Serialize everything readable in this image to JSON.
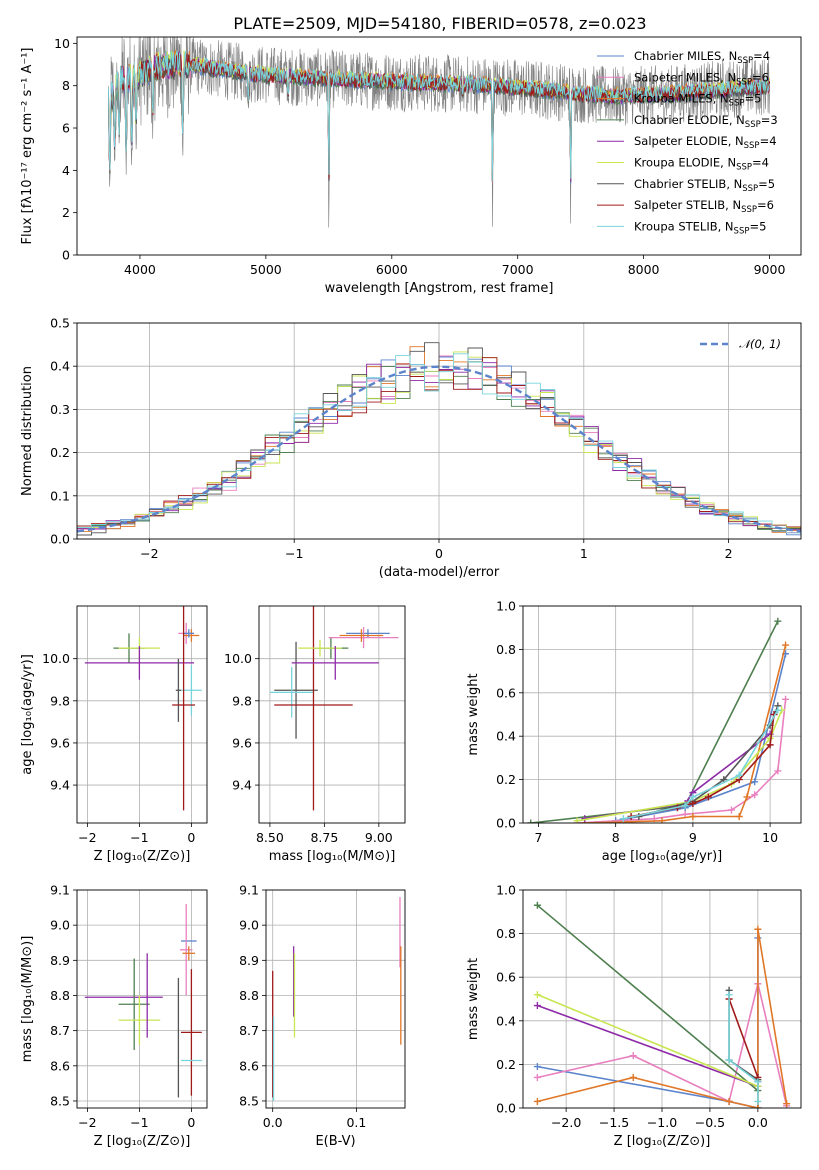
{
  "title": "PLATE=2509, MJD=54180, FIBERID=0578, z=0.023",
  "colors": {
    "chabrier_miles": "#5b84cc",
    "salpeter_miles": "#e87fbf",
    "kroupa_miles": "#e07727",
    "chabrier_elodie": "#4f7f4f",
    "salpeter_elodie": "#8e2aa8",
    "kroupa_elodie": "#c7e650",
    "chabrier_stelib": "#555555",
    "salpeter_stelib": "#a01a1a",
    "kroupa_stelib": "#78d4db",
    "data": "#808080",
    "normal_curve": "#5b84cc"
  },
  "legend": [
    {
      "key": "chabrier_miles",
      "pre": "Chabrier MILES, N",
      "sub": "SSP",
      "post": "=4"
    },
    {
      "key": "salpeter_miles",
      "pre": "Salpeter MILES, N",
      "sub": "SSP",
      "post": "=6"
    },
    {
      "key": "kroupa_miles",
      "pre": "Kroupa MILES, N",
      "sub": "SSP",
      "post": "=5"
    },
    {
      "key": "chabrier_elodie",
      "pre": "Chabrier ELODIE, N",
      "sub": "SSP",
      "post": "=3"
    },
    {
      "key": "salpeter_elodie",
      "pre": "Salpeter ELODIE, N",
      "sub": "SSP",
      "post": "=4"
    },
    {
      "key": "kroupa_elodie",
      "pre": "Kroupa ELODIE, N",
      "sub": "SSP",
      "post": "=4"
    },
    {
      "key": "chabrier_stelib",
      "pre": "Chabrier STELIB, N",
      "sub": "SSP",
      "post": "=5"
    },
    {
      "key": "salpeter_stelib",
      "pre": "Salpeter STELIB, N",
      "sub": "SSP",
      "post": "=6"
    },
    {
      "key": "kroupa_stelib",
      "pre": "Kroupa STELIB, N",
      "sub": "SSP",
      "post": "=5"
    }
  ],
  "chart_data": [
    {
      "id": "spectrum",
      "type": "line",
      "xlabel": "wavelength [Angstrom, rest frame]",
      "ylabel": "Flux [fλ10⁻¹⁷ erg cm⁻² s⁻¹ A⁻¹]",
      "xlim": [
        3500,
        9250
      ],
      "ylim": [
        0,
        10.3
      ],
      "xticks": [
        "4000",
        "5000",
        "6000",
        "7000",
        "8000",
        "9000"
      ],
      "yticks": [
        "0",
        "2",
        "4",
        "6",
        "8",
        "10"
      ],
      "continuum_x": [
        3750,
        3850,
        3950,
        4050,
        4150,
        4300,
        4500,
        4700,
        5000,
        5300,
        5600,
        6000,
        6400,
        6800,
        7200,
        7500,
        7800,
        8200,
        8600,
        9000
      ],
      "continuum_y": [
        7.2,
        8.3,
        8.4,
        8.7,
        8.9,
        9.0,
        8.9,
        8.7,
        8.5,
        8.4,
        8.3,
        8.2,
        8.1,
        8.0,
        7.8,
        7.6,
        7.5,
        7.6,
        7.8,
        8.0
      ],
      "dips": [
        [
          3760,
          2.5
        ],
        [
          3800,
          4.0
        ],
        [
          3835,
          5.0
        ],
        [
          3890,
          3.5
        ],
        [
          3934,
          4.0
        ],
        [
          3969,
          5.0
        ],
        [
          4101,
          5.5
        ],
        [
          4340,
          4.3
        ],
        [
          4861,
          6.8
        ],
        [
          5176,
          7.2
        ],
        [
          5500,
          0.0
        ],
        [
          6563,
          7.3
        ],
        [
          6800,
          0.0
        ],
        [
          7420,
          0.4
        ]
      ],
      "grid": false,
      "legend_position": "upper right"
    },
    {
      "id": "residuals",
      "type": "histogram",
      "xlabel": "(data-model)/error",
      "ylabel": "Normed distribution",
      "xlim": [
        -2.5,
        2.5
      ],
      "ylim": [
        0,
        0.5
      ],
      "xticks": [
        "−2",
        "−1",
        "0",
        "1",
        "2"
      ],
      "yticks": [
        "0.0",
        "0.1",
        "0.2",
        "0.3",
        "0.4",
        "0.5"
      ],
      "bin_width": 0.1,
      "curve_label": "𝒩(0, 1)",
      "grid": true,
      "legend_position": "upper right"
    },
    {
      "id": "age_vs_Z",
      "type": "errorbar",
      "xlabel": "Z [log₁₀(Z/Z⊙)]",
      "ylabel": "age  [log₁₀(age/yr)]",
      "xlim": [
        -2.2,
        0.3
      ],
      "ylim": [
        9.22,
        10.25
      ],
      "xticks": [
        "−2",
        "−1",
        "0"
      ],
      "yticks": [
        "9.4",
        "9.6",
        "9.8",
        "10.0"
      ],
      "points": [
        {
          "key": "chabrier_elodie",
          "x": -1.2,
          "xerr": 0.3,
          "y": 10.05,
          "yerr": 0.07
        },
        {
          "key": "kroupa_elodie",
          "x": -1.0,
          "xerr": 0.4,
          "y": 10.05,
          "yerr": 0.05
        },
        {
          "key": "salpeter_elodie",
          "x": -1.0,
          "xerr": 1.05,
          "y": 9.98,
          "yerr": 0.08
        },
        {
          "key": "salpeter_miles",
          "x": -0.1,
          "xerr": 0.15,
          "y": 10.12,
          "yerr": 0.05
        },
        {
          "key": "kroupa_miles",
          "x": 0.0,
          "xerr": 0.15,
          "y": 10.11,
          "yerr": 0.03
        },
        {
          "key": "chabrier_miles",
          "x": -0.05,
          "xerr": 0.1,
          "y": 10.12,
          "yerr": 0.02
        },
        {
          "key": "chabrier_stelib",
          "x": -0.25,
          "xerr": 0.05,
          "y": 9.85,
          "yerr": 0.15
        },
        {
          "key": "kroupa_stelib",
          "x": 0.0,
          "xerr": 0.2,
          "y": 9.85,
          "yerr": 0.12
        },
        {
          "key": "salpeter_stelib",
          "x": -0.15,
          "xerr": 0.22,
          "y": 9.78,
          "yerr": 0.5
        }
      ]
    },
    {
      "id": "age_vs_mass",
      "type": "errorbar",
      "xlabel": "mass [log₁₀(M/M⊙)]",
      "ylabel": "",
      "xlim": [
        8.45,
        9.12
      ],
      "ylim": [
        9.22,
        10.25
      ],
      "xticks": [
        "8.50",
        "8.75",
        "9.00"
      ],
      "yticks": [
        "9.4",
        "9.6",
        "9.8",
        "10.0"
      ],
      "points": [
        {
          "key": "chabrier_stelib",
          "x": 8.62,
          "xerr": 0.1,
          "y": 9.85,
          "yerr": 0.23
        },
        {
          "key": "kroupa_stelib",
          "x": 8.6,
          "xerr": 0.1,
          "y": 9.84,
          "yerr": 0.12
        },
        {
          "key": "salpeter_stelib",
          "x": 8.7,
          "xerr": 0.18,
          "y": 9.78,
          "yerr": 0.5
        },
        {
          "key": "chabrier_elodie",
          "x": 8.78,
          "xerr": 0.08,
          "y": 10.05,
          "yerr": 0.05
        },
        {
          "key": "kroupa_elodie",
          "x": 8.73,
          "xerr": 0.1,
          "y": 10.05,
          "yerr": 0.04
        },
        {
          "key": "salpeter_elodie",
          "x": 8.8,
          "xerr": 0.2,
          "y": 9.98,
          "yerr": 0.08
        },
        {
          "key": "chabrier_miles",
          "x": 8.95,
          "xerr": 0.1,
          "y": 10.12,
          "yerr": 0.02
        },
        {
          "key": "salpeter_miles",
          "x": 8.93,
          "xerr": 0.16,
          "y": 10.1,
          "yerr": 0.05
        },
        {
          "key": "kroupa_miles",
          "x": 8.92,
          "xerr": 0.1,
          "y": 10.11,
          "yerr": 0.03
        }
      ]
    },
    {
      "id": "mass_weight_vs_age",
      "type": "line",
      "xlabel": "age  [log₁₀(age/yr)]",
      "ylabel": "mass weight",
      "xlim": [
        6.8,
        10.4
      ],
      "ylim": [
        0.0,
        1.0
      ],
      "xticks": [
        "7",
        "8",
        "9",
        "10"
      ],
      "yticks": [
        "0.0",
        "0.2",
        "0.4",
        "0.6",
        "0.8",
        "1.0"
      ],
      "series": [
        {
          "key": "chabrier_miles",
          "x": [
            8.0,
            8.9,
            9.8,
            10.2
          ],
          "y": [
            0.01,
            0.07,
            0.19,
            0.78
          ]
        },
        {
          "key": "salpeter_miles",
          "x": [
            7.5,
            8.5,
            8.9,
            9.5,
            9.8,
            10.1,
            10.2
          ],
          "y": [
            0.0,
            0.02,
            0.04,
            0.06,
            0.13,
            0.24,
            0.57
          ]
        },
        {
          "key": "kroupa_miles",
          "x": [
            7.6,
            8.6,
            9.0,
            9.6,
            9.7,
            10.2
          ],
          "y": [
            0.0,
            0.01,
            0.03,
            0.03,
            0.12,
            0.82
          ]
        },
        {
          "key": "chabrier_elodie",
          "x": [
            6.9,
            8.9,
            10.1
          ],
          "y": [
            0.0,
            0.08,
            0.93
          ]
        },
        {
          "key": "salpeter_elodie",
          "x": [
            7.6,
            8.9,
            9.0,
            10.0
          ],
          "y": [
            0.02,
            0.09,
            0.14,
            0.41
          ]
        },
        {
          "key": "kroupa_elodie",
          "x": [
            7.5,
            9.0,
            9.5,
            10.0,
            10.15
          ],
          "y": [
            0.01,
            0.1,
            0.18,
            0.39,
            0.52
          ]
        },
        {
          "key": "chabrier_stelib",
          "x": [
            8.3,
            9.0,
            9.4,
            10.0,
            10.1
          ],
          "y": [
            0.03,
            0.1,
            0.2,
            0.45,
            0.54
          ]
        },
        {
          "key": "salpeter_stelib",
          "x": [
            8.2,
            8.8,
            9.0,
            9.2,
            9.6,
            10.0,
            10.05
          ],
          "y": [
            0.03,
            0.07,
            0.09,
            0.12,
            0.2,
            0.36,
            0.5
          ]
        },
        {
          "key": "kroupa_stelib",
          "x": [
            8.1,
            8.9,
            9.0,
            9.6,
            10.1
          ],
          "y": [
            0.02,
            0.08,
            0.12,
            0.22,
            0.52
          ]
        }
      ]
    },
    {
      "id": "mass_vs_Z",
      "type": "errorbar",
      "xlabel": "Z [log₁₀(Z/Z⊙)]",
      "ylabel": "mass [log₁₀(M/M⊙)]",
      "xlim": [
        -2.2,
        0.3
      ],
      "ylim": [
        8.48,
        9.1
      ],
      "xticks": [
        "−2",
        "−1",
        "0"
      ],
      "yticks": [
        "8.5",
        "8.6",
        "8.7",
        "8.8",
        "8.9",
        "9.0",
        "9.1"
      ],
      "points": [
        {
          "key": "salpeter_elodie",
          "x": -1.3,
          "xerr": 0.75,
          "y": 8.795,
          "yerr": 0.0
        },
        {
          "key": "chabrier_elodie",
          "x": -1.1,
          "xerr": 0.3,
          "y": 8.775,
          "yerr": 0.13
        },
        {
          "key": "kroupa_elodie",
          "x": -1.0,
          "xerr": 0.4,
          "y": 8.73,
          "yerr": 0.07
        },
        {
          "key": "salpeter_elodie",
          "x": -0.85,
          "xerr": 0.0,
          "y": 8.8,
          "yerr": 0.12
        },
        {
          "key": "chabrier_miles",
          "x": -0.05,
          "xerr": 0.15,
          "y": 8.955,
          "yerr": 0.0
        },
        {
          "key": "salpeter_miles",
          "x": -0.1,
          "xerr": 0.12,
          "y": 8.93,
          "yerr": 0.13
        },
        {
          "key": "kroupa_miles",
          "x": -0.05,
          "xerr": 0.12,
          "y": 8.92,
          "yerr": 0.02
        },
        {
          "key": "chabrier_stelib",
          "x": -0.25,
          "xerr": 0.0,
          "y": 8.68,
          "yerr": 0.17
        },
        {
          "key": "salpeter_stelib",
          "x": 0.0,
          "xerr": 0.2,
          "y": 8.695,
          "yerr": 0.18
        },
        {
          "key": "kroupa_stelib",
          "x": 0.0,
          "xerr": 0.2,
          "y": 8.615,
          "yerr": 0.0
        }
      ]
    },
    {
      "id": "mass_vs_ebv",
      "type": "errorbar",
      "xlabel": "E(B-V)",
      "ylabel": "",
      "xlim": [
        -0.008,
        0.158
      ],
      "ylim": [
        8.48,
        9.1
      ],
      "xticks": [
        "0.0",
        "0.1"
      ],
      "yticks": [
        "8.5",
        "8.6",
        "8.7",
        "8.8",
        "8.9",
        "9.0",
        "9.1"
      ],
      "points": [
        {
          "key": "salpeter_stelib",
          "x": 0.0,
          "xerr": 0.0,
          "y": 8.69,
          "yerr": 0.18
        },
        {
          "key": "kroupa_stelib",
          "x": 0.001,
          "xerr": 0.0,
          "y": 8.62,
          "yerr": 0.12
        },
        {
          "key": "salpeter_elodie",
          "x": 0.025,
          "xerr": 0.0,
          "y": 8.84,
          "yerr": 0.1
        },
        {
          "key": "kroupa_elodie",
          "x": 0.026,
          "xerr": 0.0,
          "y": 8.8,
          "yerr": 0.12
        },
        {
          "key": "salpeter_miles",
          "x": 0.152,
          "xerr": 0.0,
          "y": 8.98,
          "yerr": 0.1
        },
        {
          "key": "kroupa_miles",
          "x": 0.153,
          "xerr": 0.0,
          "y": 8.8,
          "yerr": 0.14
        }
      ]
    },
    {
      "id": "mass_weight_vs_Z",
      "type": "line",
      "xlabel": "Z [log₁₀(Z/Z⊙)]",
      "ylabel": "mass weight",
      "xlim": [
        -2.45,
        0.45
      ],
      "ylim": [
        0.0,
        1.0
      ],
      "xticks": [
        "−2.0",
        "−1.5",
        "−1.0",
        "−0.5",
        "0.0"
      ],
      "yticks": [
        "0.0",
        "0.2",
        "0.4",
        "0.6",
        "0.8",
        "1.0"
      ],
      "series": [
        {
          "key": "chabrier_miles",
          "x": [
            -2.3,
            -0.3,
            0.0,
            0.0
          ],
          "y": [
            0.19,
            0.03,
            0.0,
            0.78
          ]
        },
        {
          "key": "salpeter_miles",
          "x": [
            -2.3,
            -1.3,
            -0.3,
            0.0,
            0.3
          ],
          "y": [
            0.14,
            0.24,
            0.03,
            0.57,
            0.01
          ]
        },
        {
          "key": "kroupa_miles",
          "x": [
            -2.3,
            -1.3,
            -0.3,
            0.0,
            0.0,
            0.3
          ],
          "y": [
            0.03,
            0.14,
            0.03,
            0.0,
            0.82,
            0.02
          ]
        },
        {
          "key": "chabrier_elodie",
          "x": [
            -2.3,
            0.0
          ],
          "y": [
            0.93,
            0.08
          ]
        },
        {
          "key": "salpeter_elodie",
          "x": [
            -2.3,
            0.0
          ],
          "y": [
            0.47,
            0.1
          ]
        },
        {
          "key": "kroupa_elodie",
          "x": [
            -2.3,
            0.0
          ],
          "y": [
            0.52,
            0.1
          ]
        },
        {
          "key": "chabrier_stelib",
          "x": [
            -0.3,
            -0.3,
            0.0,
            0.0
          ],
          "y": [
            0.54,
            0.22,
            0.13,
            0.12
          ]
        },
        {
          "key": "salpeter_stelib",
          "x": [
            -0.3,
            0.0
          ],
          "y": [
            0.5,
            0.14
          ]
        },
        {
          "key": "kroupa_stelib",
          "x": [
            -0.3,
            -0.3,
            0.0,
            0.0
          ],
          "y": [
            0.52,
            0.22,
            0.12,
            0.03
          ]
        }
      ]
    }
  ]
}
